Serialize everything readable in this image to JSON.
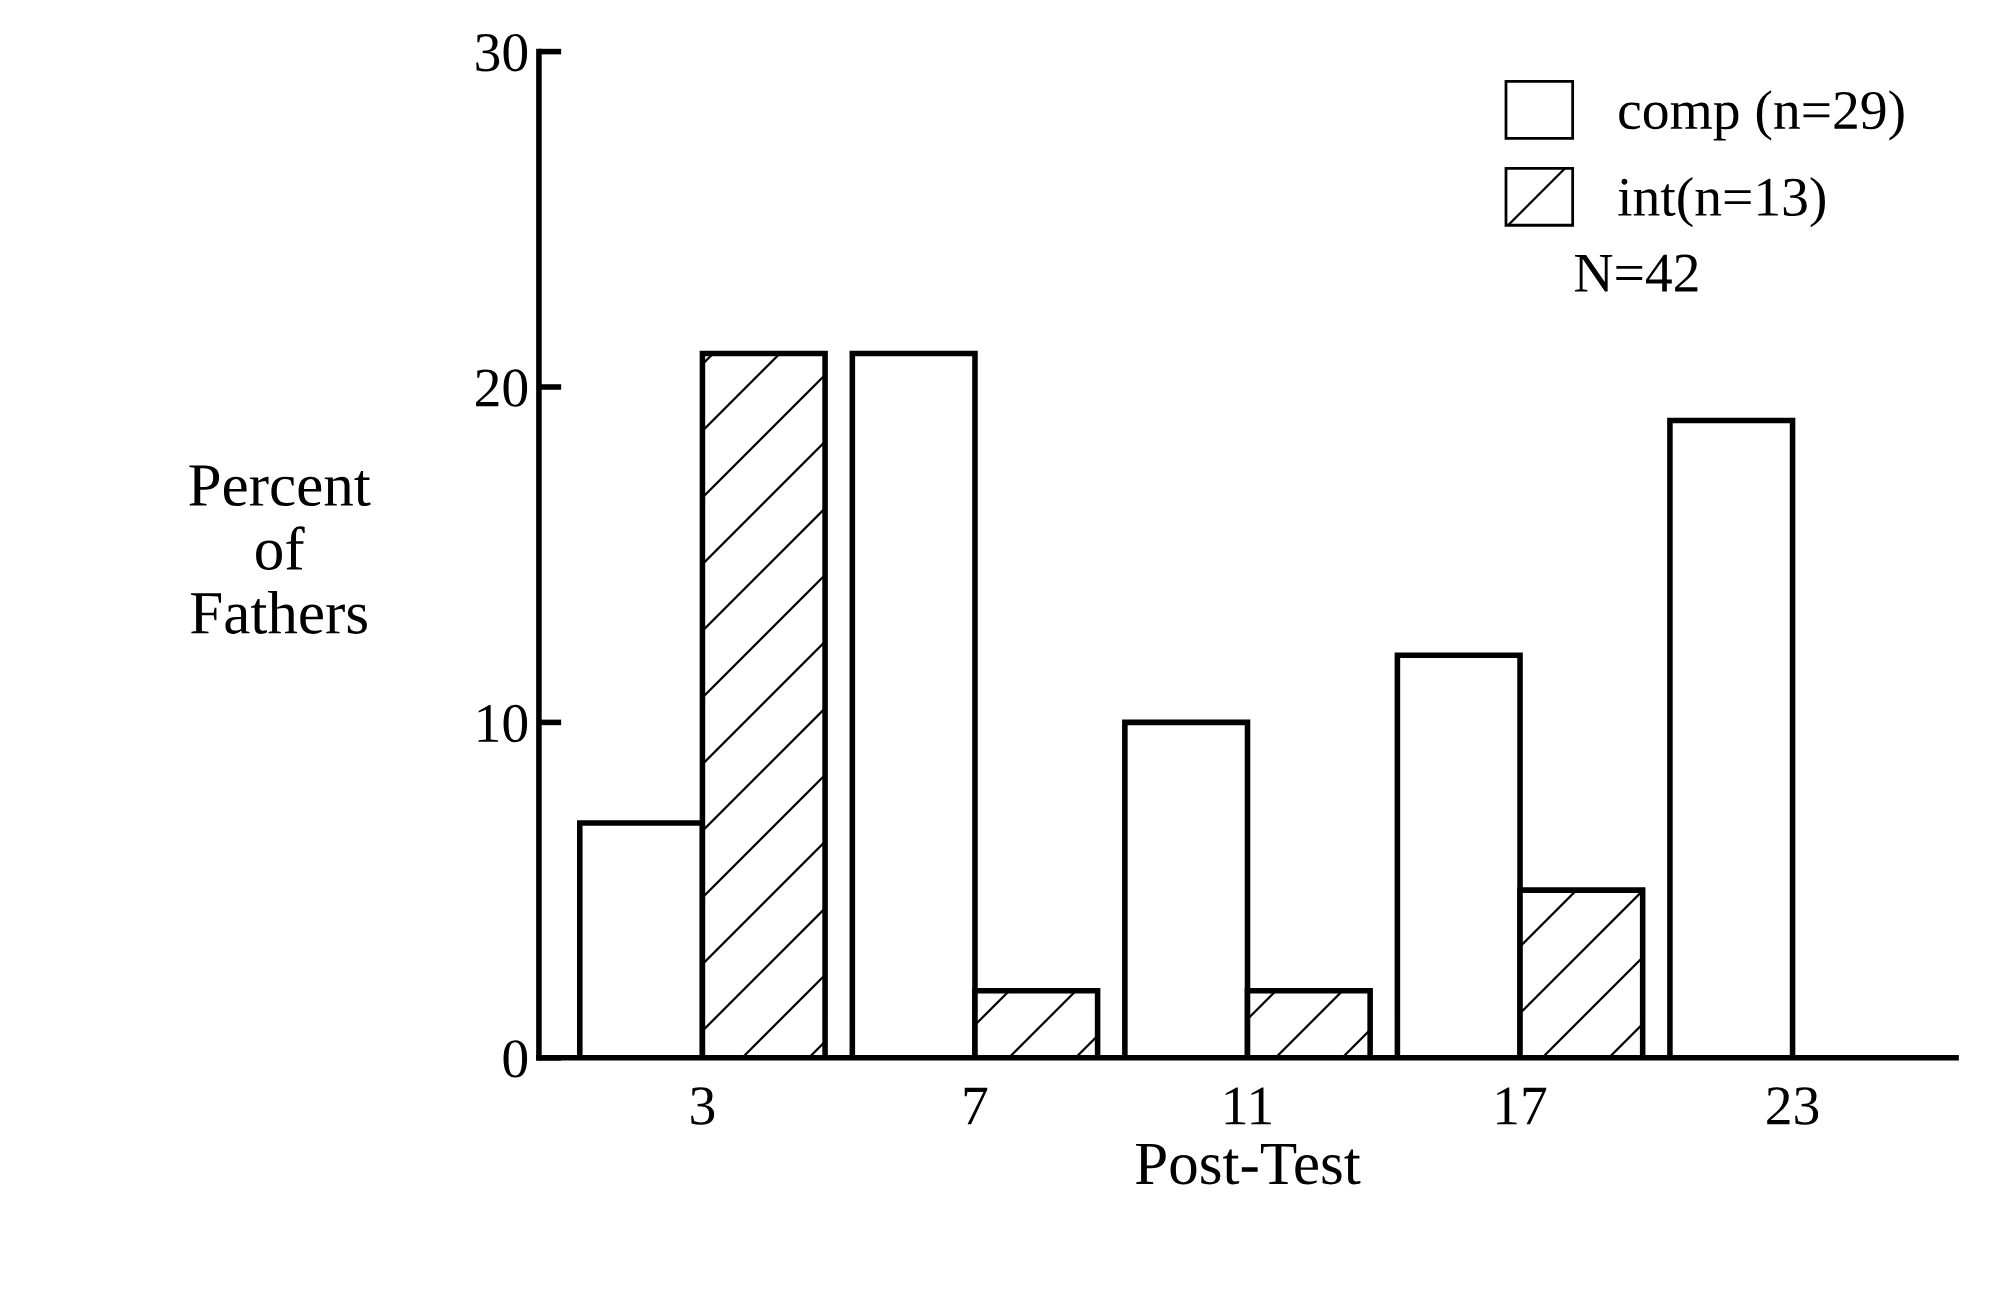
{
  "chart_data": {
    "type": "bar",
    "xlabel": "Post-Test",
    "ylabel": "Percent\nof\nFathers",
    "categories": [
      "3",
      "7",
      "11",
      "17",
      "23"
    ],
    "series": [
      {
        "name": "comp (n=29)",
        "color": "#ffffff",
        "values": [
          7,
          21,
          10,
          12,
          19
        ]
      },
      {
        "name": "int(n=13)",
        "color": "#000000",
        "values": [
          21,
          2,
          2,
          5,
          0
        ]
      }
    ],
    "ylim": [
      0,
      30
    ],
    "yticks": [
      0,
      10,
      20,
      30
    ],
    "grid": false,
    "legend": "top right",
    "annotations": [
      "N=42"
    ]
  }
}
